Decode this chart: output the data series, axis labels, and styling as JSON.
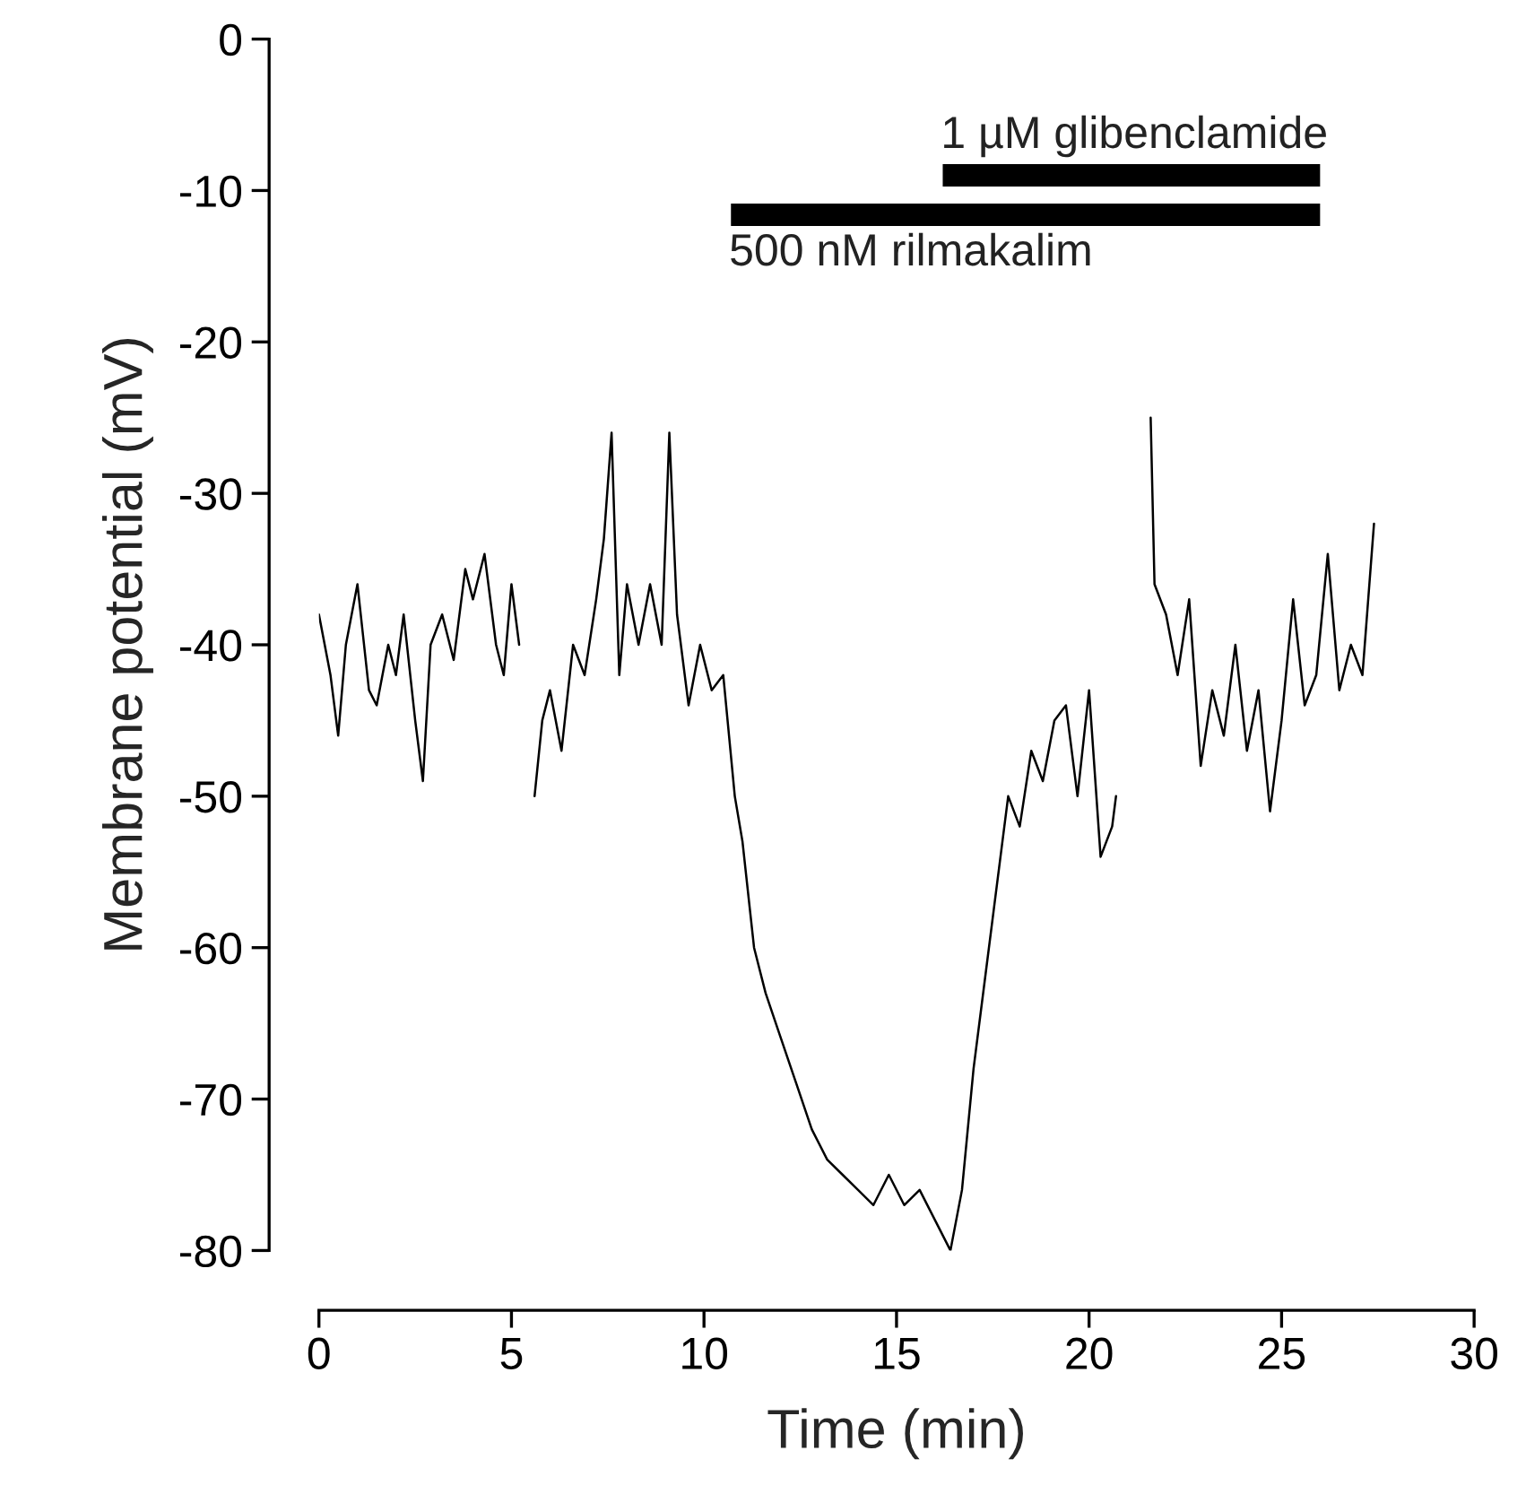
{
  "chart_data": {
    "type": "line",
    "xlabel": "Time (min)",
    "ylabel": "Membrane potential (mV)",
    "xlim": [
      0,
      30
    ],
    "xticks": [
      0,
      5,
      10,
      15,
      20,
      25,
      30
    ],
    "ylim": [
      -80,
      0
    ],
    "yticks": [
      -80,
      -70,
      -60,
      -50,
      -40,
      -30,
      -20,
      -10,
      0
    ],
    "grid": false,
    "legend": false,
    "series": [
      {
        "color": "#000000",
        "x": [
          0,
          0.3,
          0.5,
          0.7,
          1.0,
          1.3,
          1.5,
          1.8,
          2.0,
          2.2,
          2.5,
          2.7,
          2.9,
          3.2,
          3.5,
          3.8,
          4.0,
          4.3,
          4.6,
          4.8,
          5.0,
          5.2,
          5.4,
          5.6,
          5.8,
          6.0,
          6.3,
          6.6,
          6.9,
          7.2,
          7.4,
          7.6,
          7.8,
          8.0,
          8.3,
          8.6,
          8.9,
          9.1,
          9.3,
          9.6,
          9.9,
          10.2,
          10.5,
          10.8,
          11.0,
          11.3,
          11.6,
          12.0,
          12.4,
          12.8,
          13.2,
          13.6,
          14.0,
          14.4,
          14.8,
          15.2,
          15.6,
          16.0,
          16.4,
          16.7,
          17.0,
          17.3,
          17.6,
          17.9,
          18.2,
          18.5,
          18.8,
          19.1,
          19.4,
          19.7,
          20.0,
          20.3,
          20.6,
          20.7,
          21.2,
          21.6,
          21.7,
          22.0,
          22.3,
          22.6,
          22.9,
          23.2,
          23.5,
          23.8,
          24.1,
          24.4,
          24.7,
          25.0,
          25.3,
          25.6,
          25.9,
          26.2,
          26.5,
          26.8,
          27.1,
          27.4
        ],
        "values": [
          -38,
          -42,
          -46,
          -40,
          -36,
          -43,
          -44,
          -40,
          -42,
          -38,
          -45,
          -49,
          -40,
          -38,
          -41,
          -35,
          -37,
          -34,
          -40,
          -42,
          -36,
          -40,
          null,
          -50,
          -45,
          -43,
          -47,
          -40,
          -42,
          -37,
          -33,
          -26,
          -42,
          -36,
          -40,
          -36,
          -40,
          -26,
          -38,
          -44,
          -40,
          -43,
          -42,
          -50,
          -53,
          -60,
          -63,
          -66,
          -69,
          -72,
          -74,
          -75,
          -76,
          -77,
          -75,
          -77,
          -76,
          -78,
          -80,
          -76,
          -68,
          -62,
          -56,
          -50,
          -52,
          -47,
          -49,
          -45,
          -44,
          -50,
          -43,
          -54,
          -52,
          -50,
          null,
          -25,
          -36,
          -38,
          -42,
          -37,
          -48,
          -43,
          -46,
          -40,
          -47,
          -43,
          -51,
          -45,
          -37,
          -44,
          -42,
          -34,
          -43,
          -40,
          -42,
          -32
        ]
      },
      {
        "name": "500 nM rilmakalim",
        "color": "#000000",
        "x": [
          10.7,
          26.0
        ],
        "values": [
          -11.6,
          -11.6
        ]
      },
      {
        "name": "1 µM glibenclamide",
        "color": "#000000",
        "x": [
          16.2,
          26.0
        ],
        "values": [
          -9.0,
          -9.0
        ]
      }
    ]
  }
}
